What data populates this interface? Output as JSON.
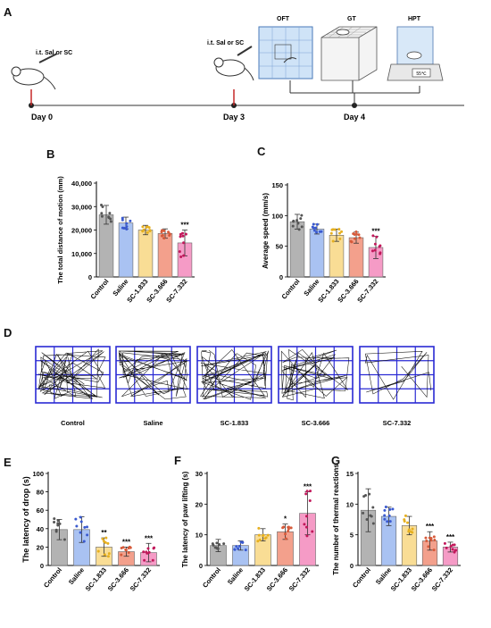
{
  "panels": {
    "A": "A",
    "B": "B",
    "C": "C",
    "D": "D",
    "E": "E",
    "F": "F",
    "G": "G"
  },
  "timeline": {
    "injection_label": "i.t. Sal or SC",
    "days": [
      "Day 0",
      "Day 3",
      "Day 4"
    ],
    "tests": [
      "OFT",
      "GT",
      "HPT"
    ],
    "hotplate_display": "55℃"
  },
  "groups": [
    "Control",
    "Saline",
    "SC-1.833",
    "SC-3.666",
    "SC-7.332"
  ],
  "group_colors": [
    "#b3b3b3",
    "#a9c2f2",
    "#f9dd95",
    "#f3a08c",
    "#f59bc6"
  ],
  "dot_colors": [
    "#555555",
    "#3a5ad0",
    "#e6b020",
    "#d65a3a",
    "#c2185b"
  ],
  "tracks_labels": [
    "Control",
    "Saline",
    "SC-1.833",
    "SC-3.666",
    "SC-7.332"
  ],
  "chart_data": [
    {
      "panel": "B",
      "type": "bar",
      "ylabel": "The total distance of motion (mm)",
      "categories": [
        "Control",
        "Saline",
        "SC-1.833",
        "SC-3.666",
        "SC-7.332"
      ],
      "values": [
        26500,
        23000,
        20000,
        18500,
        14500
      ],
      "errors": [
        4000,
        2500,
        2000,
        2000,
        5500
      ],
      "ylim": [
        0,
        40000
      ],
      "yticks": [
        "0",
        "10,000",
        "20,000",
        "30,000",
        "40,000"
      ],
      "ytick_values": [
        0,
        10000,
        20000,
        30000,
        40000
      ],
      "significance": [
        "",
        "",
        "",
        "",
        "***"
      ]
    },
    {
      "panel": "C",
      "type": "bar",
      "ylabel": "Average speed (mm/s)",
      "categories": [
        "Control",
        "Saline",
        "SC-1.833",
        "SC-3.666",
        "SC-7.332"
      ],
      "values": [
        90,
        78,
        68,
        64,
        48
      ],
      "errors": [
        12,
        8,
        10,
        9,
        18
      ],
      "ylim": [
        0,
        150
      ],
      "yticks": [
        "0",
        "50",
        "100",
        "150"
      ],
      "ytick_values": [
        0,
        50,
        100,
        150
      ],
      "significance": [
        "",
        "",
        "",
        "",
        "***"
      ]
    },
    {
      "panel": "E",
      "type": "bar",
      "ylabel": "The latency of drop (s)",
      "categories": [
        "Control",
        "Saline",
        "SC-1.833",
        "SC-3.666",
        "SC-7.332"
      ],
      "values": [
        39,
        39,
        20,
        15,
        14
      ],
      "errors": [
        11,
        14,
        10,
        5,
        10
      ],
      "ylim": [
        0,
        100
      ],
      "yticks": [
        "0",
        "20",
        "40",
        "60",
        "80",
        "100"
      ],
      "ytick_values": [
        0,
        20,
        40,
        60,
        80,
        100
      ],
      "significance": [
        "",
        "",
        "**",
        "***",
        "***"
      ]
    },
    {
      "panel": "F",
      "type": "bar",
      "ylabel": "The latency of paw lifting (s)",
      "categories": [
        "Control",
        "Saline",
        "SC-1.833",
        "SC-3.666",
        "SC-7.332"
      ],
      "values": [
        6.5,
        6.5,
        10,
        11,
        17
      ],
      "errors": [
        2,
        1.5,
        2,
        2.5,
        7
      ],
      "ylim": [
        0,
        30
      ],
      "yticks": [
        "0",
        "10",
        "20",
        "30"
      ],
      "ytick_values": [
        0,
        10,
        20,
        30
      ],
      "significance": [
        "",
        "",
        "",
        "*",
        "***"
      ]
    },
    {
      "panel": "G",
      "type": "bar",
      "ylabel": "The number of thermal reactions",
      "categories": [
        "Control",
        "Saline",
        "SC-1.833",
        "SC-3.666",
        "SC-7.332"
      ],
      "values": [
        9,
        8,
        6.5,
        4,
        3
      ],
      "errors": [
        3.5,
        1.5,
        1.5,
        1.5,
        0.8
      ],
      "ylim": [
        0,
        15
      ],
      "yticks": [
        "0",
        "5",
        "10",
        "15"
      ],
      "ytick_values": [
        0,
        5,
        10,
        15
      ],
      "significance": [
        "",
        "",
        "",
        "***",
        "***"
      ]
    }
  ]
}
